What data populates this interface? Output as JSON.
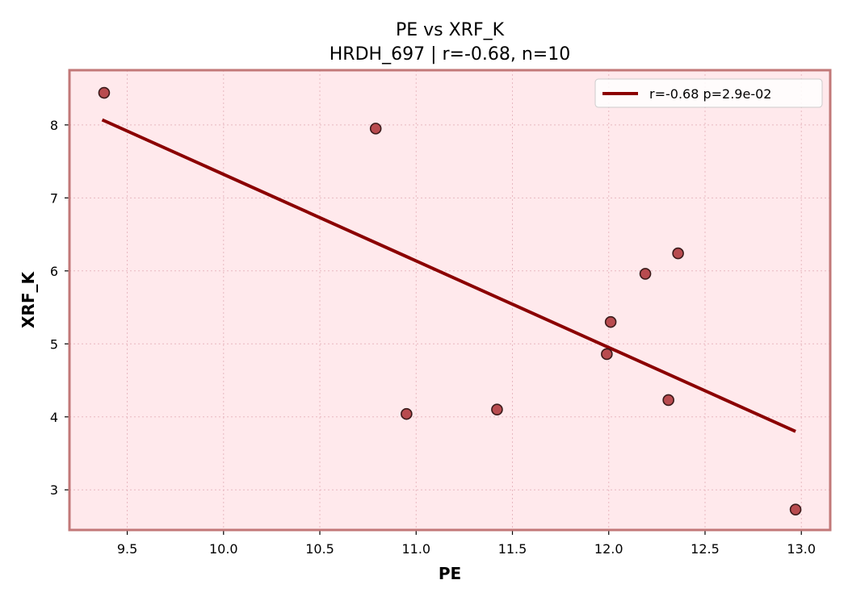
{
  "chart_data": {
    "type": "scatter",
    "title": "PE vs XRF_K",
    "subtitle": "HRDH_697 | r=-0.68, n=10",
    "xlabel": "PE",
    "ylabel": "XRF_K",
    "xlim": [
      9.2,
      13.15
    ],
    "ylim": [
      2.45,
      8.75
    ],
    "xticks": [
      9.5,
      10.0,
      10.5,
      11.0,
      11.5,
      12.0,
      12.5,
      13.0
    ],
    "xtick_labels": [
      "9.5",
      "10.0",
      "10.5",
      "11.0",
      "11.5",
      "12.0",
      "12.5",
      "13.0"
    ],
    "yticks": [
      3,
      4,
      5,
      6,
      7,
      8
    ],
    "ytick_labels": [
      "3",
      "4",
      "5",
      "6",
      "7",
      "8"
    ],
    "grid": true,
    "legend_position": "top-right",
    "series": [
      {
        "kind": "scatter",
        "x": [
          9.38,
          10.79,
          10.95,
          11.42,
          11.99,
          12.01,
          12.19,
          12.31,
          12.36,
          12.97
        ],
        "y": [
          8.44,
          7.95,
          4.04,
          4.1,
          4.86,
          5.3,
          5.96,
          4.23,
          6.24,
          2.73
        ],
        "color": "#b03a3e"
      },
      {
        "kind": "line",
        "name": "r=-0.68  p=2.9e-02",
        "x": [
          9.37,
          12.97
        ],
        "y": [
          8.07,
          3.8
        ],
        "color": "#8b0000"
      }
    ],
    "colors": {
      "plot_background": "#ffe9ec",
      "frame": "#c27878",
      "grid": "#e8b8c0",
      "marker_edge": "#3a1a1a"
    }
  }
}
